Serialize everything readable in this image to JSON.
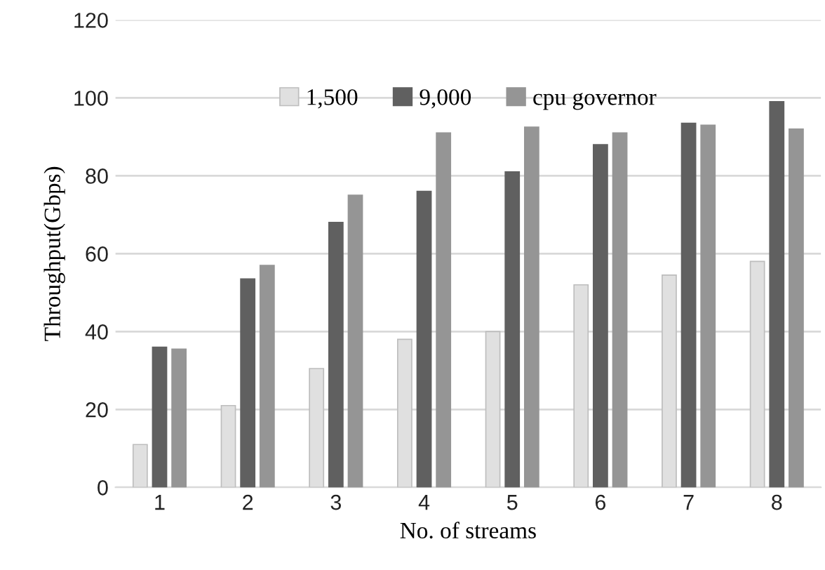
{
  "chart_data": {
    "type": "bar",
    "xlabel": "No. of streams",
    "ylabel": "Throughput(Gbps)",
    "categories": [
      "1",
      "2",
      "3",
      "4",
      "5",
      "6",
      "7",
      "8"
    ],
    "series": [
      {
        "name": "1,500",
        "color": "#e0e0e0",
        "values": [
          11,
          21,
          30.5,
          38,
          40,
          52,
          54.5,
          58
        ]
      },
      {
        "name": "9,000",
        "color": "#606060",
        "values": [
          36,
          53.5,
          68,
          76,
          81,
          88,
          93.5,
          99
        ]
      },
      {
        "name": "cpu governor",
        "color": "#959595",
        "values": [
          35.5,
          57,
          75,
          91,
          92.5,
          91,
          93,
          92
        ]
      }
    ],
    "ylim": [
      0,
      120
    ],
    "yticks": [
      0,
      20,
      40,
      60,
      80,
      100,
      120
    ],
    "grid": "y",
    "legend": "top"
  }
}
